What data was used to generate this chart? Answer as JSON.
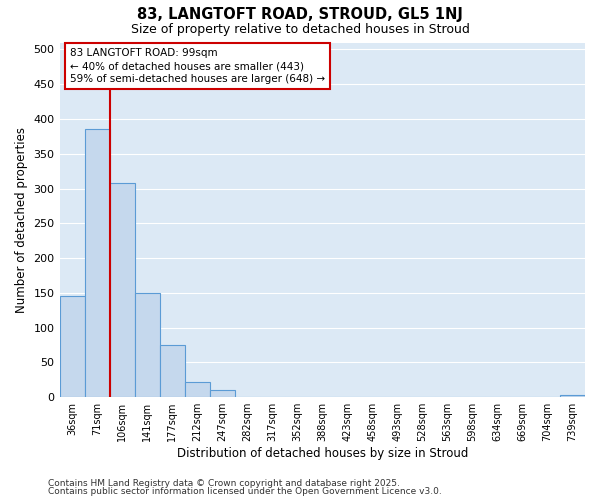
{
  "title1": "83, LANGTOFT ROAD, STROUD, GL5 1NJ",
  "title2": "Size of property relative to detached houses in Stroud",
  "xlabel": "Distribution of detached houses by size in Stroud",
  "ylabel": "Number of detached properties",
  "categories": [
    "36sqm",
    "71sqm",
    "106sqm",
    "141sqm",
    "177sqm",
    "212sqm",
    "247sqm",
    "282sqm",
    "317sqm",
    "352sqm",
    "388sqm",
    "423sqm",
    "458sqm",
    "493sqm",
    "528sqm",
    "563sqm",
    "598sqm",
    "634sqm",
    "669sqm",
    "704sqm",
    "739sqm"
  ],
  "values": [
    145,
    385,
    308,
    150,
    75,
    22,
    10,
    1,
    1,
    0,
    0,
    0,
    0,
    0,
    0,
    0,
    0,
    0,
    0,
    0,
    3
  ],
  "bar_color": "#c5d8ed",
  "bar_edge_color": "#5b9bd5",
  "plot_bg_color": "#dce9f5",
  "fig_bg_color": "#ffffff",
  "grid_color": "#ffffff",
  "vline_x": 2,
  "vline_color": "#cc0000",
  "annotation_text": "83 LANGTOFT ROAD: 99sqm\n← 40% of detached houses are smaller (443)\n59% of semi-detached houses are larger (648) →",
  "annotation_box_color": "#ffffff",
  "annotation_box_edge": "#cc0000",
  "footer1": "Contains HM Land Registry data © Crown copyright and database right 2025.",
  "footer2": "Contains public sector information licensed under the Open Government Licence v3.0.",
  "ylim": [
    0,
    510
  ],
  "yticks": [
    0,
    50,
    100,
    150,
    200,
    250,
    300,
    350,
    400,
    450,
    500
  ]
}
